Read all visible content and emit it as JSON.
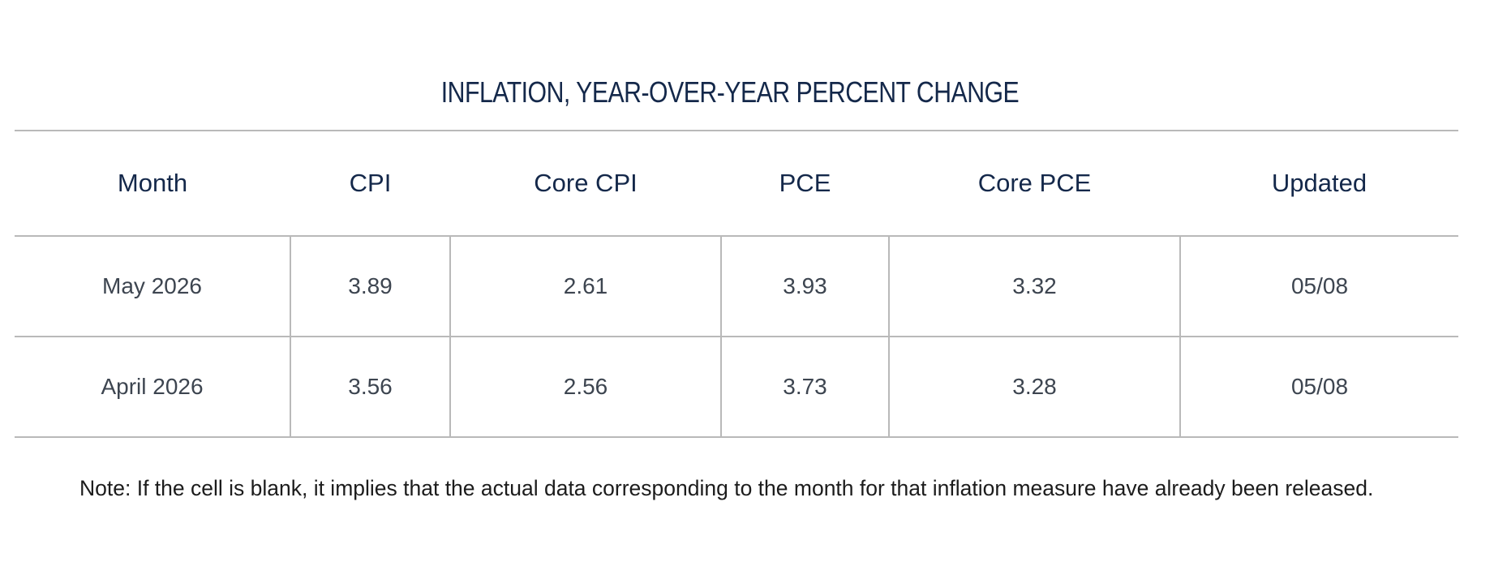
{
  "title": "INFLATION, YEAR-OVER-YEAR PERCENT CHANGE",
  "table": {
    "headers": [
      "Month",
      "CPI",
      "Core CPI",
      "PCE",
      "Core PCE",
      "Updated"
    ],
    "rows": [
      [
        "May 2026",
        "3.89",
        "2.61",
        "3.93",
        "3.32",
        "05/08"
      ],
      [
        "April 2026",
        "3.56",
        "2.56",
        "3.73",
        "3.28",
        "05/08"
      ]
    ]
  },
  "note": "Note: If the cell is blank, it implies that the actual data corresponding to the month for that inflation measure have already been released.",
  "colors": {
    "heading": "#14284a",
    "cell_text": "#3d4550",
    "rule": "#b9b9b9"
  }
}
